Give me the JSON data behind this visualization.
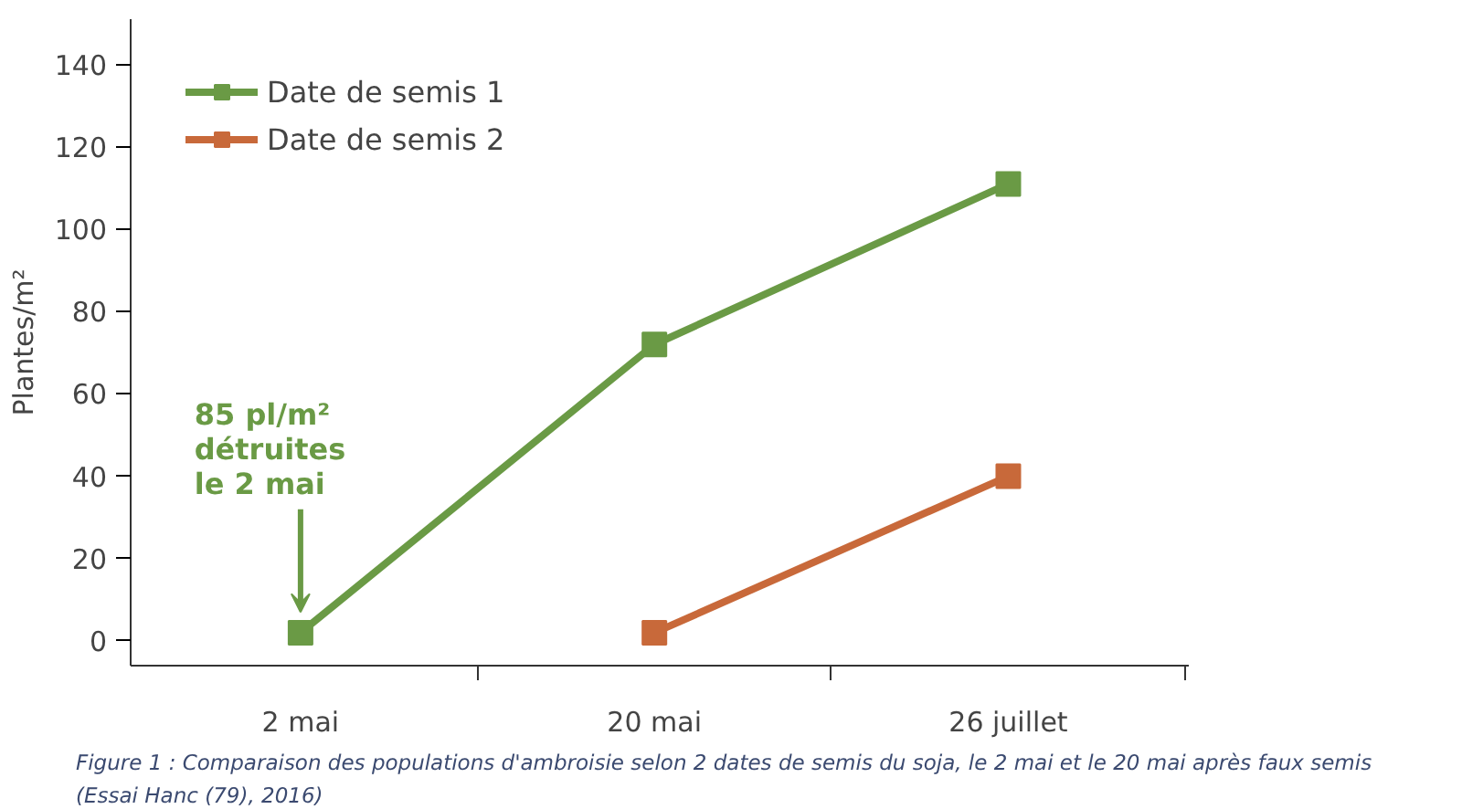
{
  "chart_data": {
    "type": "line",
    "ylabel": "Plantes/m²",
    "categories": [
      "2 mai",
      "20 mai",
      "26 juillet"
    ],
    "series": [
      {
        "name": "Date de semis 1",
        "color": "#6a9a45",
        "values": [
          2,
          72,
          111
        ]
      },
      {
        "name": "Date de semis 2",
        "color": "#c8693a",
        "values": [
          null,
          2,
          40
        ]
      }
    ],
    "ylim": [
      -6,
      151
    ],
    "yticks": [
      0,
      20,
      40,
      60,
      80,
      100,
      120,
      140
    ],
    "grid": false,
    "legend": "top left",
    "marker": "square",
    "line_style": "solid",
    "annotations": [
      "85 pl/m²\ndétruites\nle 2 mai",
      "Figure 1 : Comparaison des populations d'ambroisie selon 2 dates de semis du soja, le 2 mai et le 20 mai après faux semis",
      "(Essai Hanc (79), 2016)"
    ]
  }
}
